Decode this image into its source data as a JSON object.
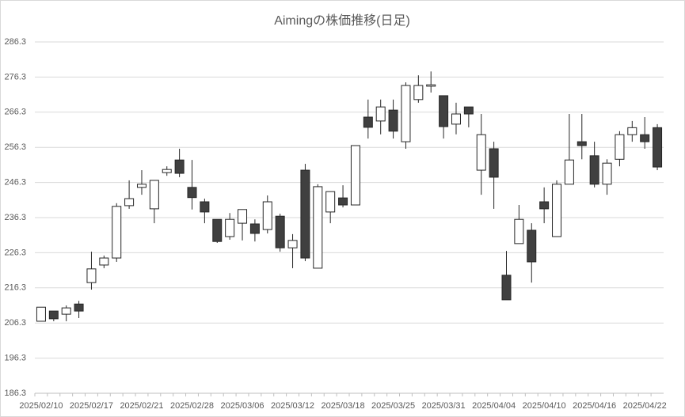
{
  "chart_data": {
    "type": "candlestick",
    "title": "Aimingの株価推移(日足)",
    "categories": [
      "2025/02/10",
      null,
      null,
      null,
      "2025/02/17",
      null,
      null,
      null,
      "2025/02/21",
      null,
      null,
      null,
      "2025/02/28",
      null,
      null,
      null,
      "2025/03/06",
      null,
      null,
      null,
      "2025/03/12",
      null,
      null,
      null,
      "2025/03/18",
      null,
      null,
      null,
      "2025/03/25",
      null,
      null,
      null,
      "2025/03/31",
      null,
      null,
      null,
      "2025/04/04",
      null,
      null,
      null,
      "2025/04/10",
      null,
      null,
      null,
      "2025/04/16",
      null,
      null,
      null,
      "2025/04/22",
      null
    ],
    "open": [
      206.8,
      209.7,
      208.8,
      211.7,
      217.8,
      222.8,
      224.8,
      239.7,
      244.9,
      238.8,
      249.1,
      252.7,
      244.9,
      240.8,
      235.8,
      230.9,
      234.7,
      234.5,
      232.9,
      236.7,
      227.7,
      249.8,
      221.9,
      237.9,
      241.9,
      239.9,
      264.9,
      263.8,
      266.9,
      257.9,
      269.9,
      273.7,
      271.0,
      262.9,
      267.8,
      249.8,
      255.9,
      219.9,
      228.9,
      232.7,
      240.8,
      230.9,
      245.8,
      257.9,
      253.9,
      245.8,
      252.9,
      259.9,
      259.9,
      261.9
    ],
    "high": [
      210.8,
      209.7,
      211.3,
      212.6,
      226.6,
      225.5,
      240.4,
      246.9,
      249.8,
      246.9,
      250.9,
      255.9,
      252.7,
      241.7,
      235.8,
      237.6,
      238.6,
      235.8,
      242.6,
      237.4,
      231.6,
      251.6,
      245.8,
      243.7,
      245.5,
      256.8,
      269.9,
      269.9,
      269.9,
      274.8,
      276.8,
      277.9,
      271.0,
      269.0,
      267.8,
      265.8,
      257.9,
      226.8,
      239.9,
      234.7,
      244.9,
      246.9,
      265.8,
      265.8,
      257.9,
      252.9,
      260.9,
      263.8,
      264.9,
      262.9
    ],
    "low": [
      206.8,
      206.8,
      206.8,
      207.7,
      215.8,
      221.9,
      223.7,
      238.8,
      242.8,
      234.7,
      248.2,
      247.8,
      238.6,
      234.7,
      229.1,
      230.0,
      229.8,
      229.5,
      231.8,
      226.6,
      221.9,
      223.9,
      221.9,
      234.7,
      239.2,
      239.9,
      258.8,
      260.0,
      258.8,
      255.9,
      269.0,
      271.9,
      258.8,
      260.0,
      262.0,
      242.8,
      238.8,
      212.9,
      228.9,
      217.8,
      234.7,
      230.9,
      245.8,
      252.9,
      244.9,
      242.8,
      250.9,
      257.9,
      255.9,
      249.8
    ],
    "close": [
      210.8,
      207.5,
      210.6,
      209.7,
      221.7,
      224.8,
      239.5,
      241.7,
      245.8,
      246.9,
      250.0,
      248.9,
      242.0,
      237.9,
      229.5,
      235.8,
      238.6,
      231.8,
      240.8,
      227.7,
      229.8,
      224.8,
      245.1,
      243.7,
      239.9,
      256.8,
      262.0,
      267.8,
      260.9,
      273.9,
      273.9,
      274.1,
      262.2,
      265.8,
      265.8,
      259.9,
      247.8,
      212.9,
      235.8,
      223.7,
      238.8,
      245.8,
      252.7,
      256.8,
      245.8,
      251.8,
      259.9,
      261.9,
      257.9,
      250.7
    ],
    "up_color": "#ffffff",
    "down_color": "#404040",
    "ylim": [
      186.3,
      286.3
    ],
    "yticks": [
      186.3,
      196.3,
      206.3,
      216.3,
      226.3,
      236.3,
      246.3,
      256.3,
      266.3,
      276.3,
      286.3
    ],
    "grid": true
  }
}
